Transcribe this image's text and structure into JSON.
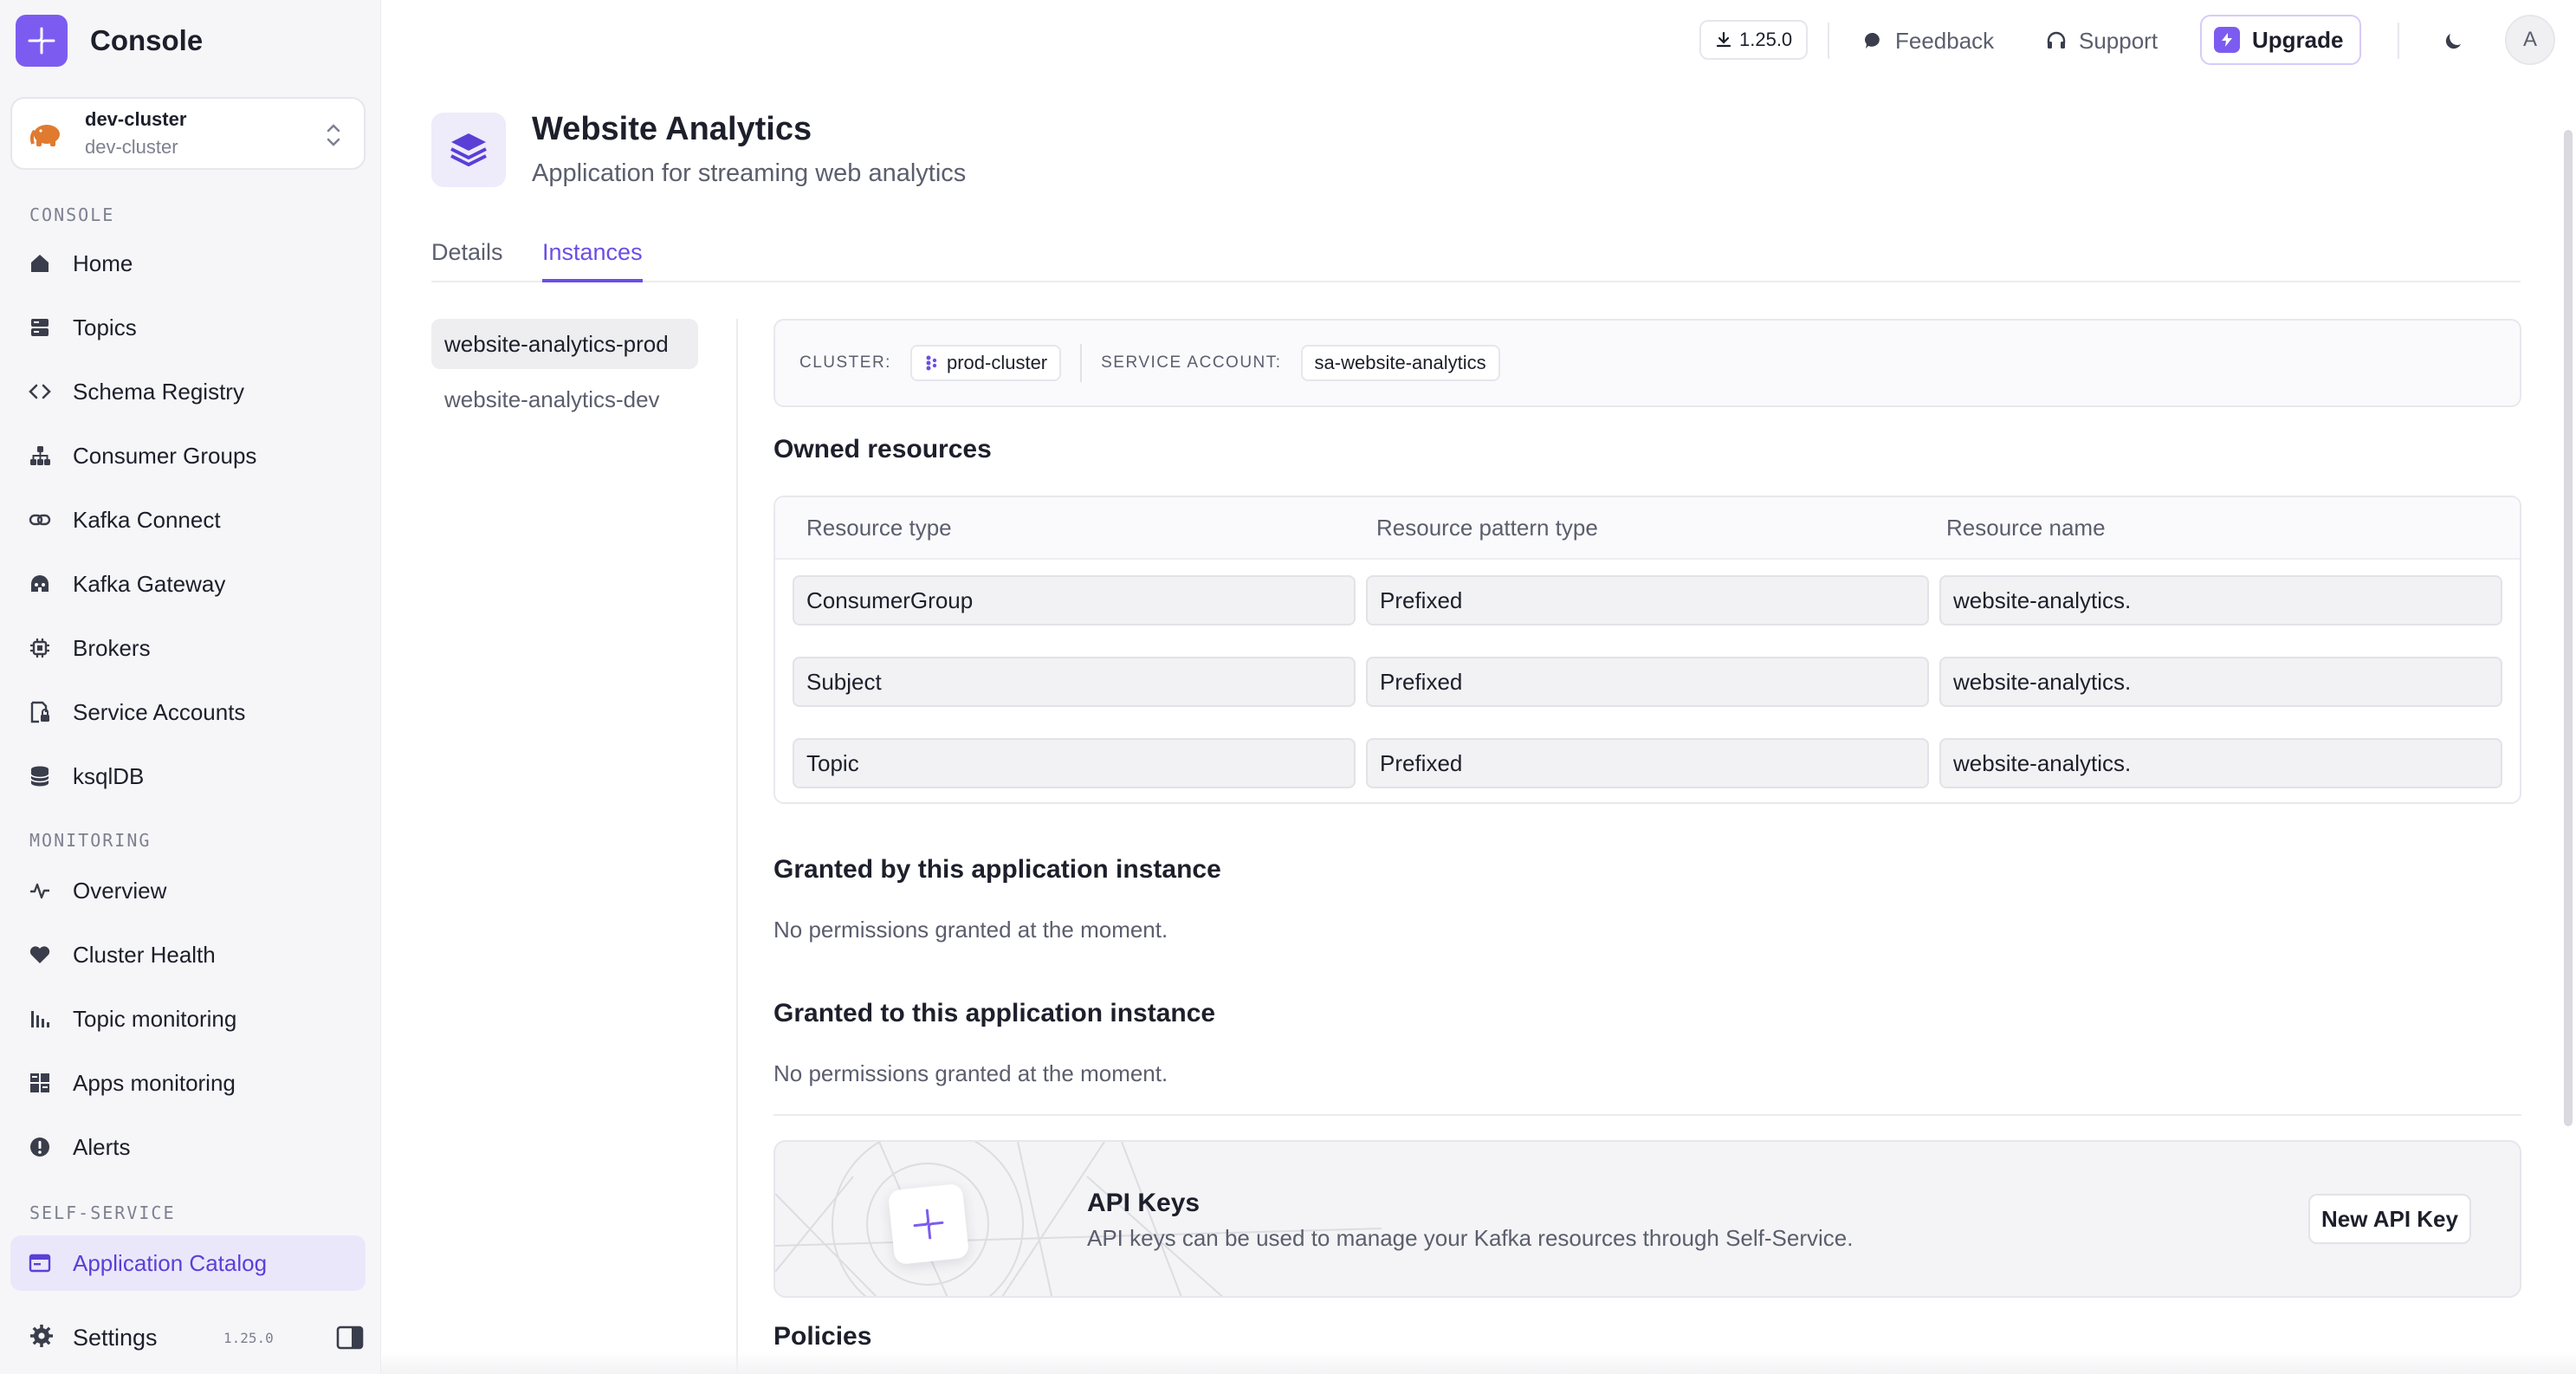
{
  "app": {
    "name": "Console",
    "version_badge": "1.25.0"
  },
  "topbar": {
    "feedback": "Feedback",
    "support": "Support",
    "upgrade": "Upgrade",
    "avatar_initial": "A"
  },
  "cluster_selector": {
    "name": "dev-cluster",
    "sub": "dev-cluster"
  },
  "sidebar": {
    "sections": {
      "console": "CONSOLE",
      "monitoring": "MONITORING",
      "self_service": "SELF-SERVICE"
    },
    "console_items": [
      {
        "label": "Home",
        "icon": "home-icon"
      },
      {
        "label": "Topics",
        "icon": "topics-icon"
      },
      {
        "label": "Schema Registry",
        "icon": "code-icon"
      },
      {
        "label": "Consumer Groups",
        "icon": "hierarchy-icon"
      },
      {
        "label": "Kafka Connect",
        "icon": "link-icon"
      },
      {
        "label": "Kafka Gateway",
        "icon": "gateway-icon"
      },
      {
        "label": "Brokers",
        "icon": "chip-icon"
      },
      {
        "label": "Service Accounts",
        "icon": "lock-file-icon"
      },
      {
        "label": "ksqlDB",
        "icon": "database-icon"
      }
    ],
    "monitoring_items": [
      {
        "label": "Overview",
        "icon": "pulse-icon"
      },
      {
        "label": "Cluster Health",
        "icon": "heart-icon"
      },
      {
        "label": "Topic monitoring",
        "icon": "bar-chart-icon"
      },
      {
        "label": "Apps monitoring",
        "icon": "grid-icon"
      },
      {
        "label": "Alerts",
        "icon": "alert-icon"
      }
    ],
    "self_service_items": [
      {
        "label": "Application Catalog",
        "icon": "catalog-icon",
        "active": true
      }
    ],
    "footer": {
      "settings": "Settings",
      "version": "1.25.0"
    }
  },
  "page": {
    "title": "Website Analytics",
    "subtitle": "Application for streaming web analytics",
    "tabs": [
      {
        "label": "Details"
      },
      {
        "label": "Instances",
        "active": true
      }
    ]
  },
  "instances": [
    {
      "name": "website-analytics-prod",
      "active": true
    },
    {
      "name": "website-analytics-dev"
    }
  ],
  "instance_info": {
    "cluster_label": "CLUSTER:",
    "cluster_value": "prod-cluster",
    "service_account_label": "SERVICE ACCOUNT:",
    "service_account_value": "sa-website-analytics"
  },
  "owned_resources": {
    "title": "Owned resources",
    "columns": [
      "Resource type",
      "Resource pattern type",
      "Resource name"
    ],
    "rows": [
      [
        "ConsumerGroup",
        "Prefixed",
        "website-analytics."
      ],
      [
        "Subject",
        "Prefixed",
        "website-analytics."
      ],
      [
        "Topic",
        "Prefixed",
        "website-analytics."
      ]
    ]
  },
  "granted_by": {
    "title": "Granted by this application instance",
    "empty": "No permissions granted at the moment."
  },
  "granted_to": {
    "title": "Granted to this application instance",
    "empty": "No permissions granted at the moment."
  },
  "api_keys": {
    "title": "API Keys",
    "description": "API keys can be used to manage your Kafka resources through Self-Service.",
    "button": "New API Key"
  },
  "policies": {
    "title": "Policies"
  },
  "colors": {
    "accent": "#6b4ee6",
    "brand": "#7c5cf0",
    "active_nav_bg": "#ebe7fb"
  }
}
